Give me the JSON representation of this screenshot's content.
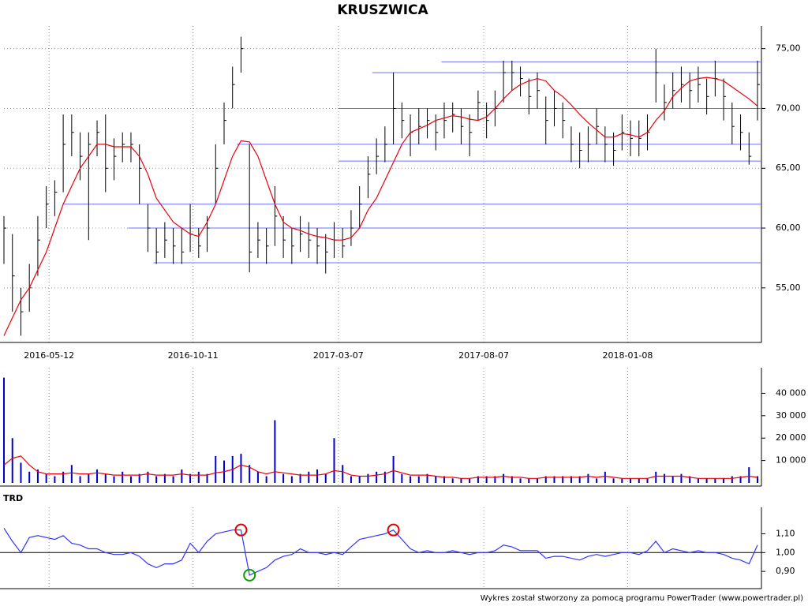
{
  "footer": "Wykres został stworzony za pomocą programu PowerTrader (www.powertrader.pl)",
  "chart_data": [
    {
      "type": "ohlc",
      "title": "KRUSZWICA",
      "x": [
        0,
        6,
        12,
        18,
        24,
        30,
        36,
        42,
        48,
        54,
        60,
        66,
        72,
        78,
        84,
        90,
        96,
        102,
        108,
        114,
        120,
        126,
        132,
        138,
        144,
        150,
        156,
        162,
        168,
        174,
        180,
        186,
        192,
        198,
        204,
        210,
        216,
        222,
        228,
        234,
        240,
        246,
        252,
        258,
        264,
        270,
        276,
        282,
        288,
        294,
        300,
        306,
        312,
        318,
        324,
        330,
        336,
        342,
        348,
        354,
        360,
        366,
        372,
        378,
        384,
        390,
        396,
        402,
        408,
        414,
        420,
        426,
        432,
        438,
        444,
        450,
        456,
        462,
        468,
        474,
        480,
        486,
        492,
        498,
        504,
        510,
        516,
        522,
        528,
        534
      ],
      "high": [
        61,
        59.5,
        55,
        57,
        61,
        63.5,
        64,
        69.5,
        69.5,
        68,
        68,
        69,
        69.5,
        67.5,
        68,
        68,
        67,
        62,
        60,
        60.5,
        60,
        60,
        62,
        60,
        61,
        67,
        70.5,
        73.5,
        76,
        67,
        60.5,
        60,
        63.5,
        61,
        60,
        61,
        60.5,
        60,
        59.5,
        60.5,
        60,
        61.5,
        63.5,
        66,
        67.5,
        68.5,
        73,
        70.5,
        69.5,
        70,
        70,
        69.5,
        70.5,
        70.5,
        70,
        69.5,
        71.5,
        70.5,
        71.5,
        74,
        74,
        73.5,
        72.5,
        73,
        71,
        71.5,
        70.5,
        68.5,
        68,
        68.5,
        70,
        68.5,
        68,
        69.5,
        69,
        69,
        69.5,
        75,
        72,
        73,
        73.5,
        73,
        73.5,
        72.5,
        74,
        72.5,
        70.5,
        69.5,
        68,
        74
      ],
      "low": [
        57,
        53,
        51,
        53,
        56,
        60,
        61,
        63,
        66,
        64,
        59,
        66,
        63,
        64,
        65.5,
        65.5,
        62,
        58,
        57,
        57.5,
        57,
        57,
        58,
        57.5,
        58,
        62,
        67,
        70,
        73,
        56.3,
        57.5,
        57,
        58.5,
        57.5,
        57,
        58,
        57.5,
        57,
        56.2,
        57.5,
        57.5,
        58.5,
        60,
        62.5,
        64.5,
        65.5,
        67,
        67.5,
        66,
        67,
        67.5,
        66.5,
        67.5,
        68,
        67,
        66,
        69,
        67.5,
        68.5,
        70.5,
        71.5,
        71,
        69.5,
        70,
        67,
        68.5,
        67.5,
        65.5,
        65,
        65.5,
        67,
        65.5,
        65.2,
        66.5,
        66,
        66,
        66.5,
        70.5,
        69,
        70,
        70.5,
        70,
        70.5,
        69.5,
        71,
        69,
        67,
        66.5,
        65.3,
        69
      ],
      "close": [
        60,
        56,
        53,
        55,
        59,
        62,
        63,
        67,
        68,
        66,
        67,
        68,
        65,
        66,
        67,
        67,
        65,
        60,
        58,
        59,
        58.5,
        58,
        59.5,
        58.5,
        60,
        65,
        69,
        72,
        75,
        58,
        59,
        58.5,
        61,
        59,
        58.5,
        59.5,
        59,
        58.5,
        58,
        59,
        58.5,
        60,
        62,
        64.5,
        66,
        67,
        70,
        69,
        68,
        68.5,
        69,
        68,
        69,
        69.5,
        68.5,
        68,
        70.5,
        69,
        70,
        73,
        73,
        72.5,
        71,
        71.5,
        69,
        70,
        69,
        67,
        66.5,
        67,
        68.5,
        67,
        66.5,
        68,
        67.5,
        67.5,
        68,
        73,
        70.5,
        71.5,
        72,
        71.5,
        72,
        71,
        72.5,
        71,
        68.5,
        68,
        66,
        72
      ],
      "color": "#000000",
      "ma": {
        "values": [
          51,
          52.5,
          54,
          55,
          56.5,
          58,
          60,
          62,
          63.5,
          65,
          66,
          67,
          67,
          66.8,
          66.8,
          66.8,
          66,
          64.5,
          62.5,
          61.5,
          60.5,
          60,
          59.5,
          59.3,
          60.5,
          62,
          64,
          66,
          67.3,
          67.2,
          66,
          64,
          62,
          60.5,
          60,
          59.8,
          59.5,
          59.3,
          59.2,
          59,
          59,
          59.2,
          60,
          61.5,
          62.5,
          64,
          65.5,
          67,
          68,
          68.3,
          68.6,
          69,
          69.2,
          69.4,
          69.3,
          69.1,
          69,
          69.3,
          70,
          70.8,
          71.5,
          72,
          72.3,
          72.5,
          72.3,
          71.5,
          71,
          70.3,
          69.5,
          68.8,
          68.2,
          67.6,
          67.6,
          67.9,
          67.8,
          67.6,
          68,
          69,
          69.8,
          71,
          71.7,
          72.3,
          72.5,
          72.6,
          72.5,
          72.3,
          71.8,
          71.3,
          70.8,
          70.2
        ],
        "color": "#e8000b"
      },
      "levels": [
        {
          "value": 73.9,
          "from": 310
        },
        {
          "value": 73.0,
          "from": 261
        },
        {
          "value": 70.0,
          "from": 237
        },
        {
          "value": 67.0,
          "from": 165
        },
        {
          "value": 65.6,
          "from": 237
        },
        {
          "value": 62.0,
          "from": 42
        },
        {
          "value": 60.0,
          "from": 88
        },
        {
          "value": 57.1,
          "from": 106
        }
      ],
      "level_color": "#6f6fff",
      "xlim": [
        0,
        534
      ],
      "xticks": [
        {
          "value": 32,
          "label": "2016-05-12"
        },
        {
          "value": 134,
          "label": "2016-10-11"
        },
        {
          "value": 237,
          "label": "2017-03-07"
        },
        {
          "value": 340,
          "label": "2017-08-07"
        },
        {
          "value": 442,
          "label": "2018-01-08"
        }
      ],
      "ylim": [
        50.7,
        76.1
      ],
      "yticks": [
        {
          "value": 55,
          "label": "55,00"
        },
        {
          "value": 60,
          "label": "60,00"
        },
        {
          "value": 65,
          "label": "65,00"
        },
        {
          "value": 70,
          "label": "70,00"
        },
        {
          "value": 75,
          "label": "75,00"
        }
      ],
      "grid": true
    },
    {
      "type": "bar",
      "x": [
        0,
        6,
        12,
        18,
        24,
        30,
        36,
        42,
        48,
        54,
        60,
        66,
        72,
        78,
        84,
        90,
        96,
        102,
        108,
        114,
        120,
        126,
        132,
        138,
        144,
        150,
        156,
        162,
        168,
        174,
        180,
        186,
        192,
        198,
        204,
        210,
        216,
        222,
        228,
        234,
        240,
        246,
        252,
        258,
        264,
        270,
        276,
        282,
        288,
        294,
        300,
        306,
        312,
        318,
        324,
        330,
        336,
        342,
        348,
        354,
        360,
        366,
        372,
        378,
        384,
        390,
        396,
        402,
        408,
        414,
        420,
        426,
        432,
        438,
        444,
        450,
        456,
        462,
        468,
        474,
        480,
        486,
        492,
        498,
        504,
        510,
        516,
        522,
        528,
        534
      ],
      "values": [
        47000,
        20000,
        9000,
        5000,
        6000,
        4000,
        3000,
        5000,
        8000,
        3000,
        4000,
        6000,
        4000,
        3000,
        5000,
        3000,
        4000,
        5000,
        3000,
        4000,
        3000,
        6000,
        4000,
        5000,
        4000,
        12000,
        10000,
        12000,
        13000,
        8000,
        5000,
        3000,
        28000,
        4000,
        3000,
        4000,
        5000,
        6000,
        4000,
        20000,
        8000,
        3000,
        3000,
        4000,
        5000,
        5000,
        12000,
        4000,
        3000,
        3000,
        4000,
        3000,
        3000,
        2000,
        2000,
        2000,
        3000,
        3000,
        3000,
        4000,
        3000,
        2000,
        2000,
        2000,
        3000,
        3000,
        3000,
        3000,
        3000,
        4000,
        2000,
        5000,
        2000,
        2000,
        2000,
        2000,
        2000,
        5000,
        4000,
        3000,
        4000,
        3000,
        2000,
        2000,
        2000,
        2000,
        3000,
        3000,
        7000,
        3000
      ],
      "color": "#0000cc",
      "ma": {
        "values": [
          8000,
          11000,
          12000,
          8000,
          5000,
          4000,
          4000,
          4000,
          4500,
          4000,
          4000,
          4500,
          4000,
          3500,
          3500,
          3500,
          3500,
          4000,
          3500,
          3500,
          3500,
          4000,
          3500,
          3500,
          3500,
          4500,
          5000,
          6000,
          8000,
          7000,
          5000,
          4000,
          5000,
          4500,
          4000,
          3500,
          3500,
          3500,
          4000,
          5500,
          5000,
          3500,
          3000,
          3000,
          3500,
          4000,
          5500,
          4500,
          3500,
          3500,
          3500,
          3000,
          2500,
          2500,
          2000,
          2000,
          2500,
          2500,
          2500,
          3000,
          2500,
          2500,
          2000,
          2000,
          2500,
          2500,
          2500,
          2500,
          2500,
          3000,
          2500,
          3000,
          2500,
          2000,
          2000,
          2000,
          2000,
          3000,
          3000,
          3000,
          3000,
          2500,
          2000,
          2000,
          2000,
          2000,
          2000,
          2500,
          3000,
          2500
        ],
        "color": "#e8000b"
      },
      "xlim": [
        0,
        534
      ],
      "ylim": [
        0,
        47200
      ],
      "yticks": [
        {
          "value": 10000,
          "label": "10 000"
        },
        {
          "value": 20000,
          "label": "20 000"
        },
        {
          "value": 30000,
          "label": "30 000"
        },
        {
          "value": 40000,
          "label": "40 000"
        }
      ],
      "grid": false
    },
    {
      "type": "line",
      "title": "TRD",
      "x": [
        0,
        6,
        12,
        18,
        24,
        30,
        36,
        42,
        48,
        54,
        60,
        66,
        72,
        78,
        84,
        90,
        96,
        102,
        108,
        114,
        120,
        126,
        132,
        138,
        144,
        150,
        156,
        162,
        168,
        174,
        180,
        186,
        192,
        198,
        204,
        210,
        216,
        222,
        228,
        234,
        240,
        246,
        252,
        258,
        264,
        270,
        276,
        282,
        288,
        294,
        300,
        306,
        312,
        318,
        324,
        330,
        336,
        342,
        348,
        354,
        360,
        366,
        372,
        378,
        384,
        390,
        396,
        402,
        408,
        414,
        420,
        426,
        432,
        438,
        444,
        450,
        456,
        462,
        468,
        474,
        480,
        486,
        492,
        498,
        504,
        510,
        516,
        522,
        528,
        534
      ],
      "values": [
        1.13,
        1.06,
        1.0,
        1.08,
        1.09,
        1.08,
        1.07,
        1.09,
        1.05,
        1.04,
        1.02,
        1.02,
        1.0,
        0.99,
        0.99,
        1.0,
        0.98,
        0.94,
        0.92,
        0.94,
        0.94,
        0.96,
        1.05,
        1.0,
        1.06,
        1.1,
        1.11,
        1.12,
        1.12,
        0.88,
        0.9,
        0.92,
        0.96,
        0.98,
        0.99,
        1.02,
        1.0,
        1.0,
        0.99,
        1.0,
        0.99,
        1.03,
        1.07,
        1.08,
        1.09,
        1.1,
        1.12,
        1.07,
        1.02,
        1.0,
        1.01,
        1.0,
        1.0,
        1.01,
        1.0,
        0.99,
        1.0,
        1.0,
        1.01,
        1.04,
        1.03,
        1.01,
        1.01,
        1.01,
        0.97,
        0.98,
        0.98,
        0.97,
        0.96,
        0.98,
        0.99,
        0.98,
        0.99,
        1.0,
        1.0,
        0.99,
        1.01,
        1.06,
        1.0,
        1.02,
        1.01,
        1.0,
        1.01,
        1.0,
        1.0,
        0.99,
        0.97,
        0.96,
        0.94,
        1.04
      ],
      "color": "#3333ff",
      "baseline": 1,
      "markers": [
        {
          "x": 168,
          "value": 1.12,
          "color": "#e00000"
        },
        {
          "x": 174,
          "value": 0.88,
          "color": "#00a000"
        },
        {
          "x": 276,
          "value": 1.12,
          "color": "#e00000"
        }
      ],
      "xlim": [
        0,
        534
      ],
      "ylim": [
        0.825,
        1.19
      ],
      "yticks": [
        {
          "value": 0.9,
          "label": "0,90"
        },
        {
          "value": 1,
          "label": "1,00"
        },
        {
          "value": 1.1,
          "label": "1,10"
        }
      ],
      "grid": false
    }
  ]
}
